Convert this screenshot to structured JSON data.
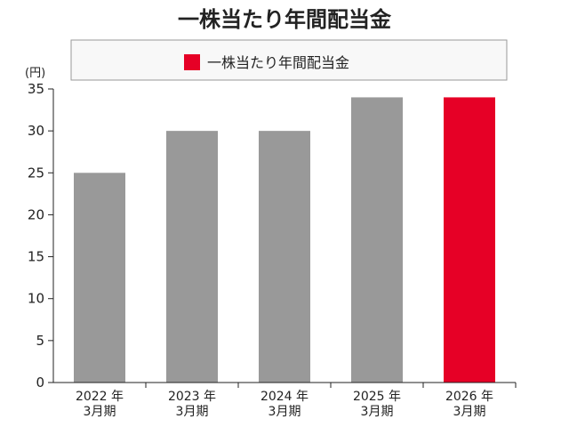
{
  "chart_data": {
    "type": "bar",
    "title": "一株当たり年間配当金",
    "legend": {
      "label": "一株当たり年間配当金",
      "swatch_color": "#e60026",
      "placement": "top"
    },
    "ylabel": "(円)",
    "ylim": [
      0,
      35
    ],
    "yticks": [
      0,
      5,
      10,
      15,
      20,
      25,
      30,
      35
    ],
    "categories": [
      [
        "2022 年",
        "3月期"
      ],
      [
        "2023 年",
        "3月期"
      ],
      [
        "2024 年",
        "3月期"
      ],
      [
        "2025 年",
        "3月期"
      ],
      [
        "2026 年",
        "3月期"
      ]
    ],
    "values": [
      25,
      30,
      30,
      34,
      34
    ],
    "bar_colors": [
      "#999999",
      "#999999",
      "#999999",
      "#999999",
      "#e60026"
    ],
    "grid": false
  }
}
